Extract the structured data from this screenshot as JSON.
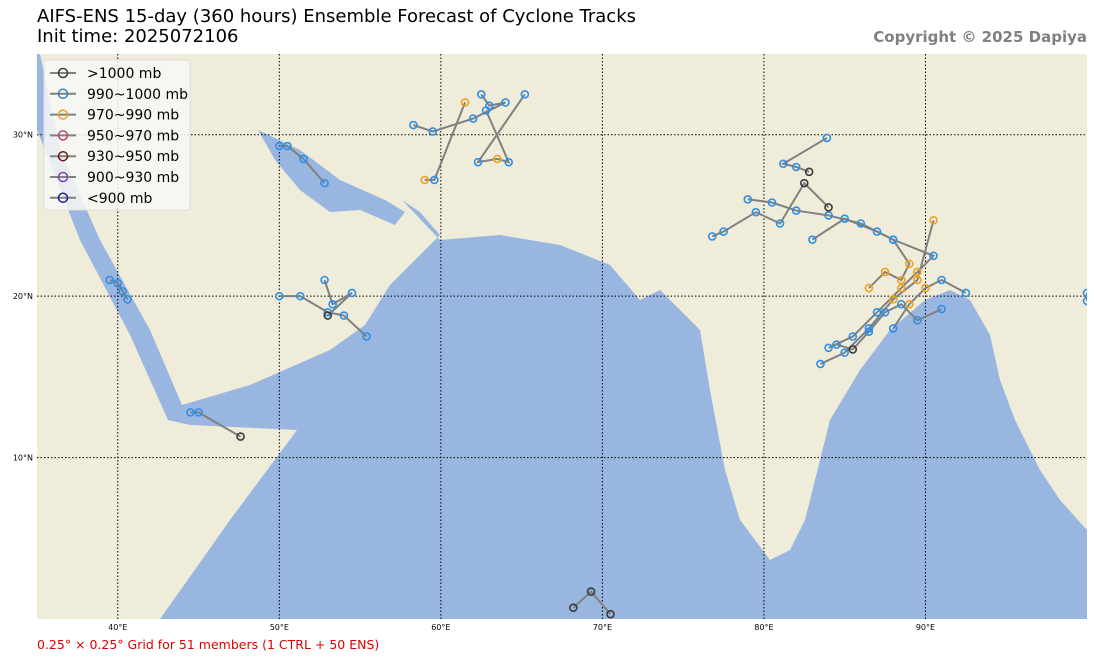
{
  "chart_data": {
    "type": "track-map",
    "title": "AIFS-ENS 15-day (360 hours) Ensemble Forecast of Cyclone Tracks",
    "subtitle": "Init time: 2025072106",
    "copyright": "Copyright © 2025 Dapiya",
    "footnote": "0.25° × 0.25° Grid for 51 members (1 CTRL + 50 ENS)",
    "xlim": [
      35,
      100
    ],
    "ylim": [
      0,
      35
    ],
    "xticks": [
      {
        "value": 40,
        "label": "40°E"
      },
      {
        "value": 50,
        "label": "50°E"
      },
      {
        "value": 60,
        "label": "60°E"
      },
      {
        "value": 70,
        "label": "70°E"
      },
      {
        "value": 80,
        "label": "80°E"
      },
      {
        "value": 90,
        "label": "90°E"
      }
    ],
    "yticks": [
      {
        "value": 10,
        "label": "10°N"
      },
      {
        "value": 20,
        "label": "20°N"
      },
      {
        "value": 30,
        "label": "30°N"
      }
    ],
    "grid": true,
    "track_color": "#808080",
    "legend": [
      {
        "name": ">1000 mb",
        "color": "#3a3a3a"
      },
      {
        "name": "990~1000 mb",
        "color": "#3a7fc4"
      },
      {
        "name": "970~990 mb",
        "color": "#f0a020"
      },
      {
        "name": "950~970 mb",
        "color": "#c0407a"
      },
      {
        "name": "930~950 mb",
        "color": "#6a1c1c"
      },
      {
        "name": "900~930 mb",
        "color": "#8040c0"
      },
      {
        "name": "<900 mb",
        "color": "#1a1a9a"
      }
    ],
    "tracks": [
      {
        "x": [
          84,
          85.5,
          87,
          88.5,
          89.5,
          90.5,
          88,
          86,
          84,
          82,
          80.5,
          79
        ],
        "y": [
          16.8,
          17.5,
          19,
          20.5,
          21.5,
          22.5,
          23.5,
          24.5,
          25,
          25.3,
          25.8,
          26
        ],
        "colors": [
          "#2f8ee6",
          "#2f8ee6",
          "#2f8ee6",
          "#f0a020",
          "#f0a020",
          "#2f8ee6",
          "#2f8ee6",
          "#2f8ee6",
          "#2f8ee6",
          "#2f8ee6",
          "#2f8ee6",
          "#2f8ee6"
        ]
      },
      {
        "x": [
          88,
          89,
          90,
          91,
          92.5
        ],
        "y": [
          18,
          19.5,
          20.5,
          21,
          20.2
        ],
        "colors": [
          "#2f8ee6",
          "#f0a020",
          "#f0a020",
          "#2f8ee6",
          "#2f8ee6"
        ]
      },
      {
        "x": [
          86.5,
          87.5,
          88.5,
          89,
          88,
          87,
          85,
          83
        ],
        "y": [
          20.5,
          21.5,
          21,
          22,
          23.5,
          24,
          24.8,
          23.5
        ],
        "colors": [
          "#f0a020",
          "#f0a020",
          "#f0a020",
          "#f0a020",
          "#2f8ee6",
          "#2f8ee6",
          "#2f8ee6",
          "#2f8ee6"
        ]
      },
      {
        "x": [
          83.5,
          85,
          86.5,
          88,
          89.5,
          90.5
        ],
        "y": [
          15.8,
          16.5,
          18,
          19.8,
          21,
          24.7
        ],
        "colors": [
          "#2f8ee6",
          "#2f8ee6",
          "#2f8ee6",
          "#f0a020",
          "#f0a020",
          "#f0a020"
        ]
      },
      {
        "x": [
          84.5,
          85.5,
          86.5,
          87.5,
          88.5,
          89.5,
          91
        ],
        "y": [
          17,
          16.7,
          17.8,
          19,
          19.5,
          18.5,
          19.2
        ],
        "colors": [
          "#2f8ee6",
          "#3a3a3a",
          "#2f8ee6",
          "#2f8ee6",
          "#2f8ee6",
          "#2f8ee6",
          "#2f8ee6"
        ]
      },
      {
        "x": [
          82.8,
          82,
          81.2,
          83.9
        ],
        "y": [
          27.7,
          28,
          28.2,
          29.8
        ],
        "colors": [
          "#3a3a3a",
          "#2f8ee6",
          "#2f8ee6",
          "#2f8ee6"
        ]
      },
      {
        "x": [
          84,
          82.5,
          81,
          79.5,
          77.5,
          76.8
        ],
        "y": [
          25.5,
          27,
          24.5,
          25.2,
          24,
          23.7
        ],
        "colors": [
          "#3a3a3a",
          "#3a3a3a",
          "#2f8ee6",
          "#2f8ee6",
          "#2f8ee6",
          "#2f8ee6"
        ]
      },
      {
        "x": [
          62.5,
          63,
          64,
          62,
          59.5,
          58.3
        ],
        "y": [
          32.5,
          31.8,
          32,
          31,
          30.2,
          30.6
        ],
        "colors": [
          "#2f8ee6",
          "#2f8ee6",
          "#2f8ee6",
          "#2f8ee6",
          "#2f8ee6",
          "#2f8ee6"
        ]
      },
      {
        "x": [
          62.8,
          64.2,
          63.5,
          62.3,
          65.2
        ],
        "y": [
          31.5,
          28.3,
          28.5,
          28.3,
          32.5
        ],
        "colors": [
          "#2f8ee6",
          "#2f8ee6",
          "#f0a020",
          "#2f8ee6",
          "#2f8ee6"
        ]
      },
      {
        "x": [
          61.5,
          59.6,
          59
        ],
        "y": [
          32,
          27.2,
          27.2
        ],
        "colors": [
          "#f0a020",
          "#2f8ee6",
          "#f0a020"
        ]
      },
      {
        "x": [
          50,
          50.5,
          51.5,
          52.8
        ],
        "y": [
          29.3,
          29.3,
          28.5,
          27
        ],
        "colors": [
          "#2f8ee6",
          "#2f8ee6",
          "#2f8ee6",
          "#2f8ee6"
        ]
      },
      {
        "x": [
          50,
          51.3,
          53,
          54,
          55.4
        ],
        "y": [
          20,
          20,
          19,
          18.8,
          17.5
        ],
        "colors": [
          "#2f8ee6",
          "#2f8ee6",
          "#2f8ee6",
          "#2f8ee6",
          "#2f8ee6"
        ]
      },
      {
        "x": [
          52.8,
          53.3,
          54.5,
          53
        ],
        "y": [
          21,
          19.5,
          20.2,
          18.8
        ],
        "colors": [
          "#2f8ee6",
          "#2f8ee6",
          "#2f8ee6",
          "#3a3a3a"
        ]
      },
      {
        "x": [
          39.5,
          40,
          40.3,
          40.6
        ],
        "y": [
          21,
          20.8,
          20.3,
          19.8
        ],
        "colors": [
          "#2f8ee6",
          "#2f8ee6",
          "#2f8ee6",
          "#2f8ee6"
        ]
      },
      {
        "x": [
          44.5,
          45,
          47.6
        ],
        "y": [
          12.8,
          12.8,
          11.3
        ],
        "colors": [
          "#2f8ee6",
          "#2f8ee6",
          "#3a3a3a"
        ]
      },
      {
        "x": [
          68.2,
          69.3,
          70.5
        ],
        "y": [
          0.7,
          1.7,
          0.3
        ],
        "colors": [
          "#3a3a3a",
          "#3a3a3a",
          "#3a3a3a"
        ]
      },
      {
        "x": [
          100,
          100
        ],
        "y": [
          20.2,
          19.7
        ],
        "colors": [
          "#2f8ee6",
          "#2f8ee6"
        ]
      }
    ]
  }
}
